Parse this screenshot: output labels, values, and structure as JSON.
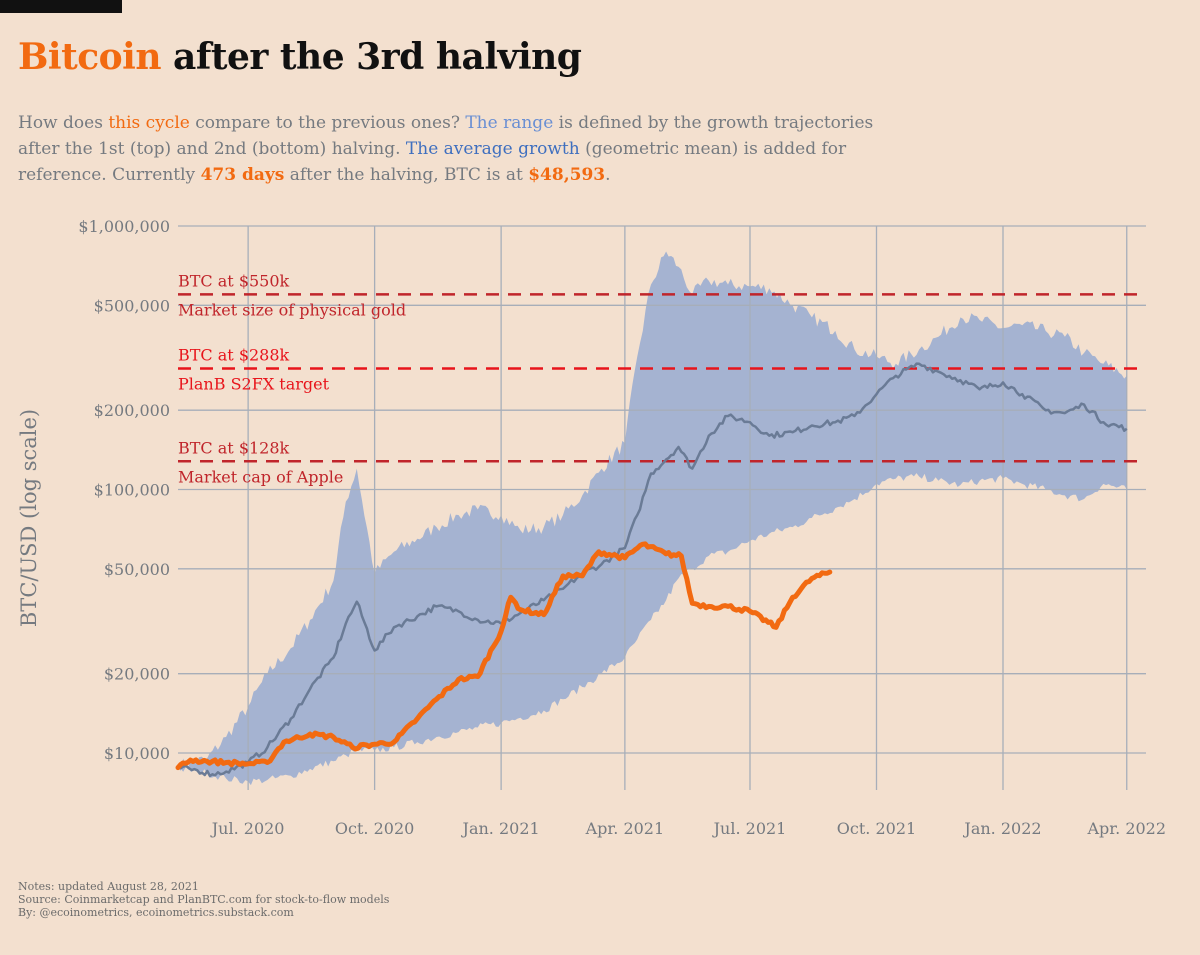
{
  "title": {
    "highlight": "Bitcoin",
    "rest": " after the 3rd halving"
  },
  "subtitle": {
    "t1": "How does ",
    "this_cycle": "this cycle",
    "t2": " compare to the previous ones? ",
    "the_range": "The range",
    "t3": " is defined by the growth trajectories after the 1st (top) and 2nd (bottom) halving. ",
    "avg_growth": "The average growth",
    "t4": " (geometric mean) is added for reference. Currently ",
    "days": "473 days",
    "t5": " after the halving, BTC is at ",
    "price": "$48,593",
    "t6": "."
  },
  "colors": {
    "background": "#f3e0cf",
    "range_band": "#a5b3d1",
    "average_line": "#6a7b96",
    "current_cycle": "#f26a11",
    "reference_line_dark": "#c0252b",
    "reference_line_bright": "#e8141b",
    "grid": "#a7aeb9",
    "axis_text": "#757a80"
  },
  "chart_data": {
    "type": "line",
    "ylabel": "BTC/USD (log scale)",
    "yscale": "log",
    "ylim": [
      7000,
      1000000
    ],
    "xlim": [
      "2020-05-11",
      "2022-04-15"
    ],
    "grid": true,
    "y_ticks": [
      {
        "value": 10000,
        "label": "$10,000"
      },
      {
        "value": 20000,
        "label": "$20,000"
      },
      {
        "value": 50000,
        "label": "$50,000"
      },
      {
        "value": 100000,
        "label": "$100,000"
      },
      {
        "value": 200000,
        "label": "$200,000"
      },
      {
        "value": 500000,
        "label": "$500,000"
      },
      {
        "value": 1000000,
        "label": "$1,000,000"
      }
    ],
    "x_ticks": [
      {
        "date": "2020-07-01",
        "label": "Jul. 2020"
      },
      {
        "date": "2020-10-01",
        "label": "Oct. 2020"
      },
      {
        "date": "2021-01-01",
        "label": "Jan. 2021"
      },
      {
        "date": "2021-04-01",
        "label": "Apr. 2021"
      },
      {
        "date": "2021-07-01",
        "label": "Jul. 2021"
      },
      {
        "date": "2021-10-01",
        "label": "Oct. 2021"
      },
      {
        "date": "2022-01-01",
        "label": "Jan. 2022"
      },
      {
        "date": "2022-04-01",
        "label": "Apr. 2022"
      }
    ],
    "reference_lines": [
      {
        "value": 550000,
        "label_above": "BTC at $550k",
        "label_below": "Market size of physical gold",
        "style": "dark"
      },
      {
        "value": 288000,
        "label_above": "BTC at $288k",
        "label_below": "PlanB S2FX target",
        "style": "bright"
      },
      {
        "value": 128000,
        "label_above": "BTC at $128k",
        "label_below": "Market cap of Apple",
        "style": "dark"
      }
    ],
    "range_band": {
      "x": [
        "2020-05-11",
        "2020-06-01",
        "2020-06-15",
        "2020-07-01",
        "2020-07-15",
        "2020-08-01",
        "2020-08-15",
        "2020-09-01",
        "2020-09-10",
        "2020-09-18",
        "2020-10-01",
        "2020-10-15",
        "2020-11-01",
        "2020-11-15",
        "2020-12-01",
        "2020-12-15",
        "2021-01-01",
        "2021-01-15",
        "2021-02-01",
        "2021-02-15",
        "2021-03-01",
        "2021-03-15",
        "2021-04-01",
        "2021-04-10",
        "2021-04-20",
        "2021-05-01",
        "2021-05-10",
        "2021-05-20",
        "2021-06-01",
        "2021-06-15",
        "2021-07-01",
        "2021-07-15",
        "2021-08-01",
        "2021-08-15",
        "2021-09-01",
        "2021-09-15",
        "2021-10-01",
        "2021-10-15",
        "2021-11-01",
        "2021-11-15",
        "2021-12-01",
        "2021-12-15",
        "2022-01-01",
        "2022-01-15",
        "2022-02-01",
        "2022-02-15",
        "2022-03-01",
        "2022-03-15",
        "2022-04-01"
      ],
      "upper": [
        9000,
        9500,
        11500,
        15000,
        20000,
        25000,
        32000,
        45000,
        90000,
        120000,
        48000,
        58000,
        65000,
        72000,
        80000,
        84000,
        80000,
        70000,
        72000,
        80000,
        95000,
        120000,
        150000,
        320000,
        600000,
        800000,
        700000,
        550000,
        620000,
        600000,
        590000,
        580000,
        500000,
        450000,
        400000,
        340000,
        320000,
        300000,
        340000,
        380000,
        450000,
        440000,
        410000,
        420000,
        400000,
        380000,
        330000,
        300000,
        270000
      ],
      "lower": [
        8700,
        8400,
        8000,
        7800,
        7900,
        8200,
        8700,
        9300,
        9800,
        10200,
        10200,
        10500,
        11000,
        11500,
        12000,
        12500,
        13000,
        13600,
        14500,
        16000,
        17800,
        20000,
        23000,
        27000,
        32000,
        38000,
        46000,
        50000,
        56000,
        58000,
        64000,
        68000,
        72000,
        78000,
        85000,
        92000,
        105000,
        110000,
        112000,
        108000,
        104000,
        108000,
        110000,
        105000,
        100000,
        95000,
        92000,
        105000,
        100000
      ]
    },
    "series": [
      {
        "name": "average",
        "x": [
          "2020-05-11",
          "2020-05-25",
          "2020-06-05",
          "2020-06-15",
          "2020-07-01",
          "2020-07-15",
          "2020-08-01",
          "2020-08-15",
          "2020-09-01",
          "2020-09-10",
          "2020-09-18",
          "2020-10-01",
          "2020-10-15",
          "2020-11-01",
          "2020-11-15",
          "2020-12-01",
          "2020-12-15",
          "2021-01-01",
          "2021-01-15",
          "2021-02-01",
          "2021-02-15",
          "2021-03-01",
          "2021-03-15",
          "2021-04-01",
          "2021-04-10",
          "2021-04-20",
          "2021-05-01",
          "2021-05-10",
          "2021-05-20",
          "2021-06-01",
          "2021-06-15",
          "2021-07-01",
          "2021-07-15",
          "2021-08-01",
          "2021-08-15",
          "2021-09-01",
          "2021-09-15",
          "2021-10-01",
          "2021-10-15",
          "2021-11-01",
          "2021-11-15",
          "2021-12-01",
          "2021-12-15",
          "2022-01-01",
          "2022-01-15",
          "2022-02-01",
          "2022-02-15",
          "2022-03-01",
          "2022-03-15",
          "2022-04-01"
        ],
        "y": [
          8800,
          8600,
          8300,
          8500,
          9200,
          10500,
          13500,
          17500,
          23000,
          31000,
          37500,
          24500,
          30000,
          33000,
          36000,
          34500,
          32000,
          31000,
          34000,
          38000,
          42000,
          48000,
          52000,
          60000,
          80000,
          115000,
          130000,
          145000,
          120000,
          160000,
          190000,
          180000,
          160000,
          165000,
          175000,
          180000,
          190000,
          230000,
          270000,
          300000,
          280000,
          260000,
          240000,
          255000,
          230000,
          200000,
          195000,
          210000,
          180000,
          170000
        ]
      },
      {
        "name": "current",
        "x": [
          "2020-05-11",
          "2020-05-20",
          "2020-06-01",
          "2020-06-15",
          "2020-07-01",
          "2020-07-15",
          "2020-07-27",
          "2020-08-15",
          "2020-09-01",
          "2020-09-15",
          "2020-10-01",
          "2020-10-15",
          "2020-11-01",
          "2020-11-15",
          "2020-12-01",
          "2020-12-15",
          "2021-01-01",
          "2021-01-08",
          "2021-01-15",
          "2021-02-01",
          "2021-02-15",
          "2021-03-01",
          "2021-03-13",
          "2021-04-01",
          "2021-04-14",
          "2021-05-01",
          "2021-05-12",
          "2021-05-20",
          "2021-06-01",
          "2021-06-15",
          "2021-07-01",
          "2021-07-20",
          "2021-08-01",
          "2021-08-15",
          "2021-08-28"
        ],
        "y": [
          8800,
          9400,
          9300,
          9200,
          9100,
          9200,
          11000,
          11800,
          11500,
          10500,
          10800,
          11000,
          13500,
          16000,
          19000,
          19500,
          29000,
          39000,
          35000,
          33500,
          47000,
          47000,
          58000,
          55000,
          62000,
          57000,
          56000,
          37000,
          36000,
          36000,
          34500,
          30000,
          39000,
          46000,
          48593
        ]
      }
    ]
  },
  "notes": [
    "Notes: updated August 28, 2021",
    "Source: Coinmarketcap and PlanBTC.com for stock-to-flow models",
    "By: @ecoinometrics, ecoinometrics.substack.com"
  ]
}
